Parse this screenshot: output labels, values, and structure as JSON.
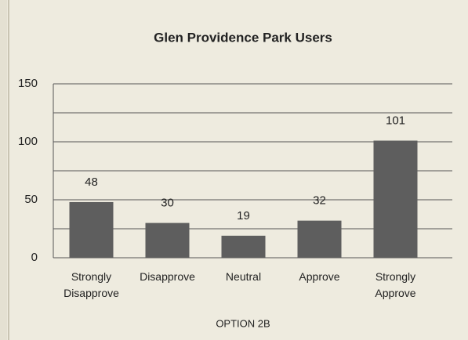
{
  "chart_data": {
    "type": "bar",
    "title": "Glen Providence Park Users",
    "categories": [
      "Strongly Disapprove",
      "Disapprove",
      "Neutral",
      "Approve",
      "Strongly Approve"
    ],
    "values": [
      48,
      30,
      19,
      32,
      101
    ],
    "color": "#5e5e5e",
    "x_label": "OPTION 2B",
    "ylim": [
      0,
      150
    ],
    "yticks": [
      0,
      50,
      100,
      150
    ],
    "minor_yticks": [
      25,
      75,
      125
    ],
    "grid": true
  }
}
